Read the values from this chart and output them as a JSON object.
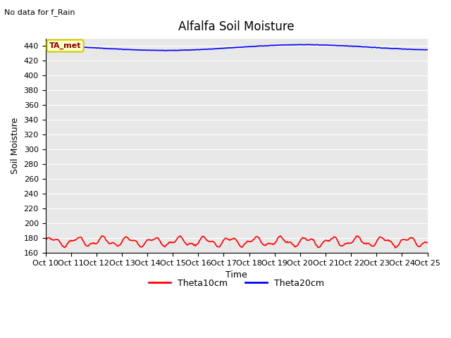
{
  "title": "Alfalfa Soil Moisture",
  "no_data_text": "No data for f_Rain",
  "xlabel": "Time",
  "ylabel": "Soil Moisture",
  "ylim": [
    160,
    450
  ],
  "yticks": [
    160,
    180,
    200,
    220,
    240,
    260,
    280,
    300,
    320,
    340,
    360,
    380,
    400,
    420,
    440
  ],
  "xlim": [
    0,
    15
  ],
  "xtick_positions": [
    0,
    1,
    2,
    3,
    4,
    5,
    6,
    7,
    8,
    9,
    10,
    11,
    12,
    13,
    14,
    15
  ],
  "xtick_labels": [
    "Oct 10",
    "Oct 11",
    "Oct 12",
    "Oct 13",
    "Oct 14",
    "Oct 15",
    "Oct 16",
    "Oct 17",
    "Oct 18",
    "Oct 19",
    "Oct 20",
    "Oct 21",
    "Oct 22",
    "Oct 23",
    "Oct 24",
    "Oct 25"
  ],
  "theta10_color": "#ff0000",
  "theta20_color": "#0000ff",
  "bg_color": "#e8e8e8",
  "legend_label_10": "Theta10cm",
  "legend_label_20": "Theta20cm",
  "annotation_text": "TA_met",
  "title_fontsize": 12,
  "axis_label_fontsize": 9,
  "tick_fontsize": 8
}
